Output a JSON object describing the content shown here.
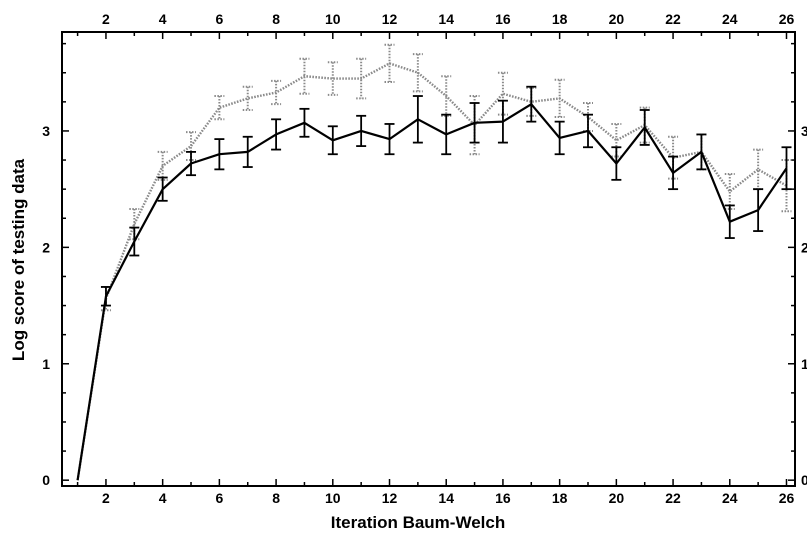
{
  "chart_data": {
    "type": "line",
    "title": "",
    "xlabel": "Iteration Baum-Welch",
    "ylabel": "Log score of testing data",
    "xlim": [
      0.45,
      26.3
    ],
    "ylim": [
      -0.05,
      3.85
    ],
    "x_ticks": [
      2,
      4,
      6,
      8,
      10,
      12,
      14,
      16,
      18,
      20,
      22,
      24,
      26
    ],
    "x_tick_labels": [
      "2",
      "4",
      "6",
      "8",
      "10",
      "12",
      "14",
      "16",
      "18",
      "20",
      "22",
      "24",
      "26"
    ],
    "y_ticks": [
      0,
      1,
      2,
      3
    ],
    "y_tick_labels": [
      "0",
      "1",
      "2",
      "3"
    ],
    "top_axis_tick_labels": [
      "2",
      "4",
      "6",
      "8",
      "10",
      "12",
      "14",
      "16",
      "18",
      "20",
      "22",
      "24",
      "26"
    ],
    "right_axis_tick_labels": [
      "0",
      "1",
      "2",
      "3"
    ],
    "grid": false,
    "x": [
      1,
      2,
      3,
      4,
      5,
      6,
      7,
      8,
      9,
      10,
      11,
      12,
      13,
      14,
      15,
      16,
      17,
      18,
      19,
      20,
      21,
      22,
      23,
      24,
      25,
      26
    ],
    "series": [
      {
        "style": "dotted-gray",
        "color": "#8a8a8a",
        "values": [
          0.0,
          1.56,
          2.2,
          2.7,
          2.87,
          3.2,
          3.28,
          3.33,
          3.47,
          3.45,
          3.45,
          3.58,
          3.5,
          3.3,
          3.05,
          3.32,
          3.25,
          3.28,
          3.12,
          2.92,
          3.05,
          2.77,
          2.82,
          2.48,
          2.67,
          2.53
        ],
        "errors": [
          0.0,
          0.1,
          0.13,
          0.12,
          0.12,
          0.1,
          0.1,
          0.1,
          0.15,
          0.14,
          0.17,
          0.16,
          0.16,
          0.17,
          0.25,
          0.18,
          0.12,
          0.16,
          0.12,
          0.14,
          0.15,
          0.18,
          0.15,
          0.15,
          0.17,
          0.22
        ]
      },
      {
        "style": "solid-black",
        "color": "#000000",
        "values": [
          0.0,
          1.58,
          2.05,
          2.5,
          2.72,
          2.8,
          2.82,
          2.97,
          3.07,
          2.92,
          3.0,
          2.93,
          3.1,
          2.97,
          3.07,
          3.08,
          3.23,
          2.94,
          3.0,
          2.72,
          3.03,
          2.64,
          2.82,
          2.22,
          2.32,
          2.68
        ],
        "errors": [
          0.0,
          0.08,
          0.12,
          0.1,
          0.1,
          0.13,
          0.13,
          0.13,
          0.12,
          0.12,
          0.13,
          0.13,
          0.2,
          0.17,
          0.17,
          0.18,
          0.15,
          0.14,
          0.14,
          0.14,
          0.15,
          0.14,
          0.15,
          0.14,
          0.18,
          0.18
        ]
      }
    ]
  }
}
